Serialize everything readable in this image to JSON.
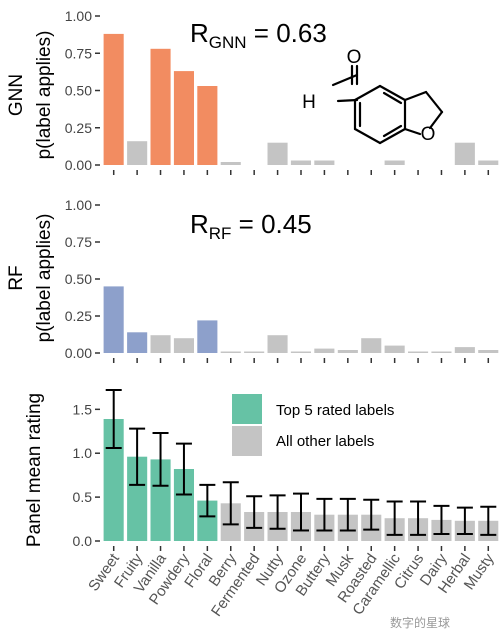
{
  "categories": [
    "Sweet",
    "Fruity",
    "Vanilla",
    "Powdery",
    "Floral",
    "Berry",
    "Fermented",
    "Nutty",
    "Ozone",
    "Buttery",
    "Musk",
    "Roasted",
    "Caramellic",
    "Citrus",
    "Dairy",
    "Herbal",
    "Musty"
  ],
  "colors": {
    "highlight_gnn": "#f28c61",
    "highlight_rf": "#8da0cb",
    "highlight_panel": "#66c2a5",
    "other": "#c4c4c4"
  },
  "chart_data": [
    {
      "type": "bar",
      "panel": "GNN",
      "side_label": "GNN",
      "ylabel": "p(label applies)",
      "ylim": [
        0,
        1.0
      ],
      "yticks": [
        "0.00",
        "0.25",
        "0.50",
        "0.75",
        "1.00"
      ],
      "annotation": {
        "main": "R",
        "sub": "GNN",
        "rest": " = 0.63"
      },
      "values": [
        0.88,
        0.16,
        0.78,
        0.63,
        0.53,
        0.02,
        0.0,
        0.15,
        0.03,
        0.03,
        0.0,
        0.0,
        0.03,
        0.0,
        0.0,
        0.15,
        0.03
      ],
      "highlight": [
        true,
        false,
        true,
        true,
        true,
        false,
        false,
        false,
        false,
        false,
        false,
        false,
        false,
        false,
        false,
        false,
        false
      ]
    },
    {
      "type": "bar",
      "panel": "RF",
      "side_label": "RF",
      "ylabel": "p(label applies)",
      "ylim": [
        0,
        1.0
      ],
      "yticks": [
        "0.00",
        "0.25",
        "0.50",
        "0.75",
        "1.00"
      ],
      "annotation": {
        "main": "R",
        "sub": "RF",
        "rest": " = 0.45"
      },
      "values": [
        0.45,
        0.14,
        0.12,
        0.1,
        0.22,
        0.01,
        0.01,
        0.12,
        0.01,
        0.03,
        0.02,
        0.1,
        0.05,
        0.01,
        0.01,
        0.04,
        0.02
      ],
      "highlight": [
        true,
        true,
        false,
        false,
        true,
        false,
        false,
        false,
        false,
        false,
        false,
        false,
        false,
        false,
        false,
        false,
        false
      ]
    },
    {
      "type": "bar",
      "panel": "Panel",
      "ylabel": "Panel mean rating",
      "ylim": [
        0,
        1.8
      ],
      "yticks": [
        "0.0",
        "0.5",
        "1.0",
        "1.5"
      ],
      "values": [
        1.39,
        0.96,
        0.93,
        0.82,
        0.46,
        0.43,
        0.33,
        0.33,
        0.33,
        0.3,
        0.3,
        0.3,
        0.26,
        0.26,
        0.24,
        0.23,
        0.23
      ],
      "errors": [
        0.33,
        0.32,
        0.3,
        0.29,
        0.18,
        0.24,
        0.18,
        0.19,
        0.21,
        0.18,
        0.18,
        0.17,
        0.19,
        0.19,
        0.16,
        0.15,
        0.16
      ],
      "highlight": [
        true,
        true,
        true,
        true,
        true,
        false,
        false,
        false,
        false,
        false,
        false,
        false,
        false,
        false,
        false,
        false,
        false
      ],
      "legend": [
        "Top 5 rated labels",
        "All other labels"
      ]
    }
  ],
  "molecule": {
    "atom_o1": "O",
    "atom_h": "H",
    "atom_o2": "O"
  },
  "watermark": "数字的星球"
}
